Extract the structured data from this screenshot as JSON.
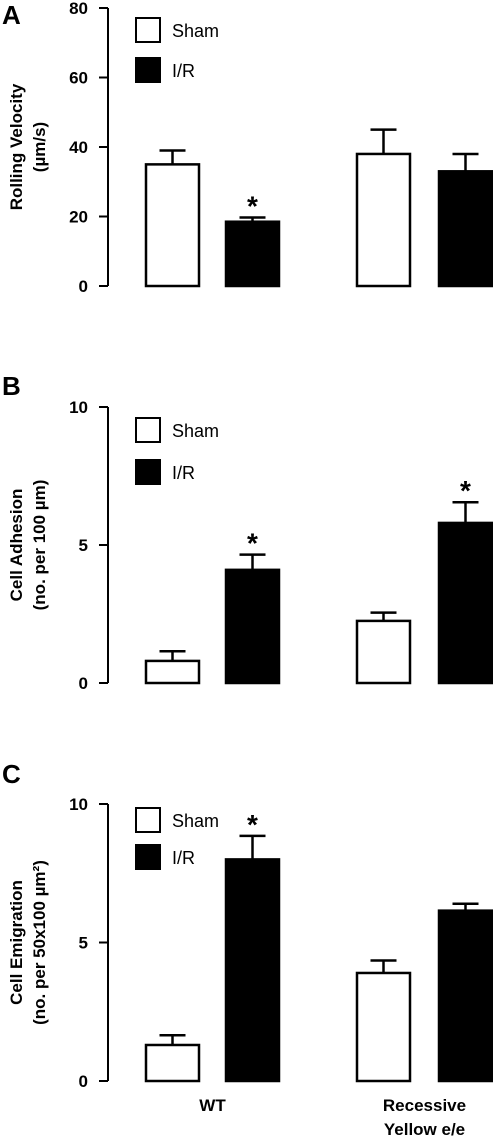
{
  "chart_data": [
    {
      "type": "bar",
      "panel": "A",
      "ylabel_line1": "Rolling Velocity",
      "ylabel_line2": "(µm/s)",
      "ylim": [
        0,
        80
      ],
      "yticks": [
        0,
        20,
        40,
        60,
        80
      ],
      "categories": [
        "WT",
        "Recessive Yellow e/e"
      ],
      "series": [
        {
          "name": "Sham",
          "values": [
            35,
            38
          ],
          "errors": [
            4,
            7
          ],
          "fill": "#ffffff"
        },
        {
          "name": "I/R",
          "values": [
            18.5,
            33
          ],
          "errors": [
            1.2,
            5
          ],
          "fill": "#000000"
        }
      ],
      "significance": [
        {
          "category": 0,
          "series": 1,
          "mark": "*"
        }
      ],
      "legend": "top-left"
    },
    {
      "type": "bar",
      "panel": "B",
      "ylabel_line1": "Cell Adhesion",
      "ylabel_line2": "(no. per 100 µm)",
      "ylim": [
        0,
        10
      ],
      "yticks": [
        0,
        5,
        10
      ],
      "categories": [
        "WT",
        "Recessive Yellow e/e"
      ],
      "series": [
        {
          "name": "Sham",
          "values": [
            0.8,
            2.25
          ],
          "errors": [
            0.35,
            0.3
          ],
          "fill": "#ffffff"
        },
        {
          "name": "I/R",
          "values": [
            4.1,
            5.8
          ],
          "errors": [
            0.55,
            0.75
          ],
          "fill": "#000000"
        }
      ],
      "significance": [
        {
          "category": 0,
          "series": 1,
          "mark": "*"
        },
        {
          "category": 1,
          "series": 1,
          "mark": "*"
        }
      ],
      "legend": "top-left"
    },
    {
      "type": "bar",
      "panel": "C",
      "ylabel_line1": "Cell Emigration",
      "ylabel_line2": "(no. per 50x100 µm²)",
      "ylim": [
        0,
        10
      ],
      "yticks": [
        0,
        5,
        10
      ],
      "categories": [
        "WT",
        "Recessive Yellow e/e"
      ],
      "category_label_lines": [
        [
          "WT"
        ],
        [
          "Recessive",
          "Yellow e/e"
        ]
      ],
      "series": [
        {
          "name": "Sham",
          "values": [
            1.3,
            3.9
          ],
          "errors": [
            0.35,
            0.45
          ],
          "fill": "#ffffff"
        },
        {
          "name": "I/R",
          "values": [
            8.0,
            6.15
          ],
          "errors": [
            0.85,
            0.25
          ],
          "fill": "#000000"
        }
      ],
      "significance": [
        {
          "category": 0,
          "series": 1,
          "mark": "*"
        }
      ],
      "legend": "top-left"
    }
  ]
}
